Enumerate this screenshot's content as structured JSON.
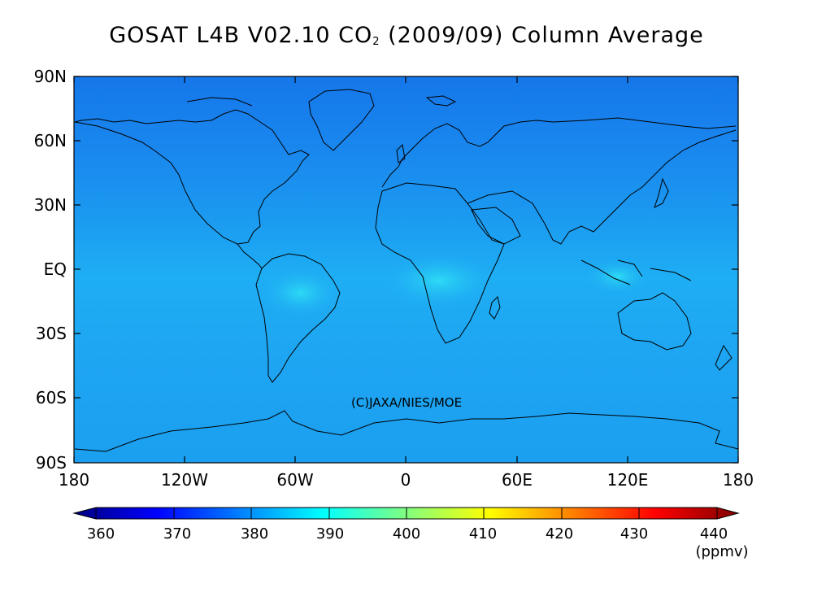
{
  "title": {
    "main": "GOSAT L4B V02.10 CO",
    "subscript": "2",
    "suffix": "(2009/09) Column Average"
  },
  "map": {
    "lat_ticks": [
      "90N",
      "60N",
      "30N",
      "EQ",
      "30S",
      "60S",
      "90S"
    ],
    "lon_ticks": [
      "180",
      "120W",
      "60W",
      "0",
      "60E",
      "120E",
      "180"
    ],
    "credit": "(C)JAXA/NIES/MOE",
    "background_color": "#1a9cf0"
  },
  "colorbar": {
    "ticks": [
      "360",
      "370",
      "380",
      "390",
      "400",
      "410",
      "420",
      "430",
      "440"
    ],
    "unit": "(ppmv)",
    "colors": [
      "#000080",
      "#0000ff",
      "#0080ff",
      "#00ffff",
      "#80ff80",
      "#ffff00",
      "#ff8000",
      "#ff0000",
      "#800000"
    ]
  }
}
